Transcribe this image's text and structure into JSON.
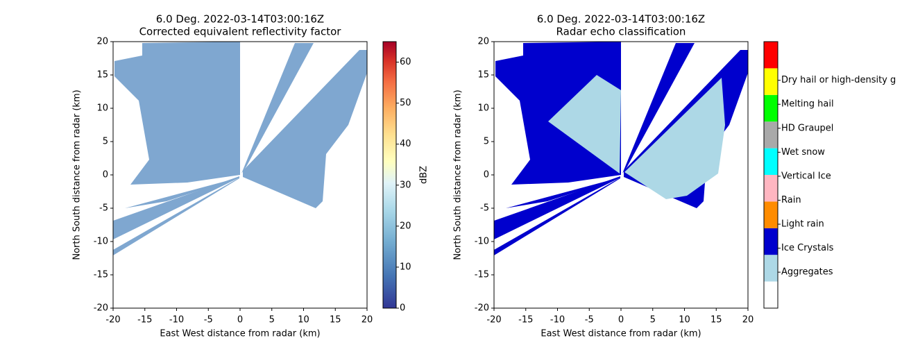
{
  "chart_data": [
    {
      "type": "heatmap",
      "title": [
        "6.0 Deg. 2022-03-14T03:00:16Z",
        "Corrected equivalent reflectivity factor"
      ],
      "xlabel": "East West distance from radar (km)",
      "ylabel": "North South distance from radar (km)",
      "xlim": [
        -20,
        20
      ],
      "ylim": [
        -20,
        20
      ],
      "xticks": [
        -20,
        -15,
        -10,
        -5,
        0,
        5,
        10,
        15,
        20
      ],
      "yticks": [
        -20,
        -15,
        -10,
        -5,
        0,
        5,
        10,
        15,
        20
      ],
      "colormap": "RdYlBu_r",
      "colorbar": {
        "label": "dBZ",
        "lim": [
          0,
          65
        ],
        "ticks": [
          0,
          10,
          20,
          30,
          40,
          50,
          60
        ]
      }
    },
    {
      "type": "heatmap",
      "title": [
        "6.0 Deg. 2022-03-14T03:00:16Z",
        "Radar echo classification"
      ],
      "xlabel": "East West distance from radar (km)",
      "ylabel": "North South distance from radar (km)",
      "xlim": [
        -20,
        20
      ],
      "ylim": [
        -20,
        20
      ],
      "xticks": [
        -20,
        -15,
        -10,
        -5,
        0,
        5,
        10,
        15,
        20
      ],
      "yticks": [
        -20,
        -15,
        -10,
        -5,
        0,
        5,
        10,
        15,
        20
      ],
      "colorbar": {
        "lim": [
          0,
          10
        ],
        "colors": [
          "#ffffff",
          "#add8e6",
          "#0000cd",
          "#ff8c00",
          "#ffb6c1",
          "#00ffff",
          "#a9a9a9",
          "#00ff00",
          "#ffff00",
          "#ff0000"
        ],
        "ticks": [
          {
            "value": 1.35,
            "label": "Aggregates"
          },
          {
            "value": 2.25,
            "label": "Ice Crystals"
          },
          {
            "value": 3.15,
            "label": "Light rain"
          },
          {
            "value": 4.05,
            "label": "Rain"
          },
          {
            "value": 4.95,
            "label": "Vertical Ice"
          },
          {
            "value": 5.85,
            "label": "Wet snow"
          },
          {
            "value": 6.75,
            "label": "HD Graupel"
          },
          {
            "value": 7.65,
            "label": "Melting hail"
          },
          {
            "value": 8.55,
            "label": "Dry hail or high-density g"
          }
        ]
      }
    }
  ]
}
